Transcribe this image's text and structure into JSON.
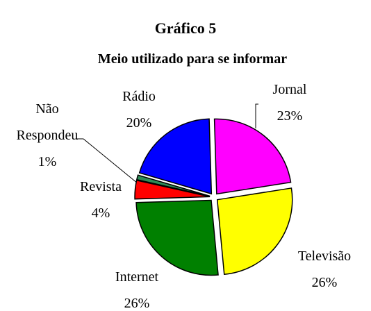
{
  "chart_data": {
    "type": "pie",
    "title": "Gráfico 5",
    "subtitle": "Meio utilizado para se informar",
    "categories": [
      "Jornal",
      "Televisão",
      "Internet",
      "Revista",
      "Não Respondeu",
      "Rádio"
    ],
    "values": [
      23,
      26,
      26,
      4,
      1,
      20
    ],
    "value_labels": [
      "23%",
      "26%",
      "26%",
      "4%",
      "1%",
      "20%"
    ],
    "colors": [
      "#ff00ff",
      "#ffff00",
      "#008000",
      "#ff0000",
      "#2e8b57",
      "#0000ff"
    ]
  }
}
